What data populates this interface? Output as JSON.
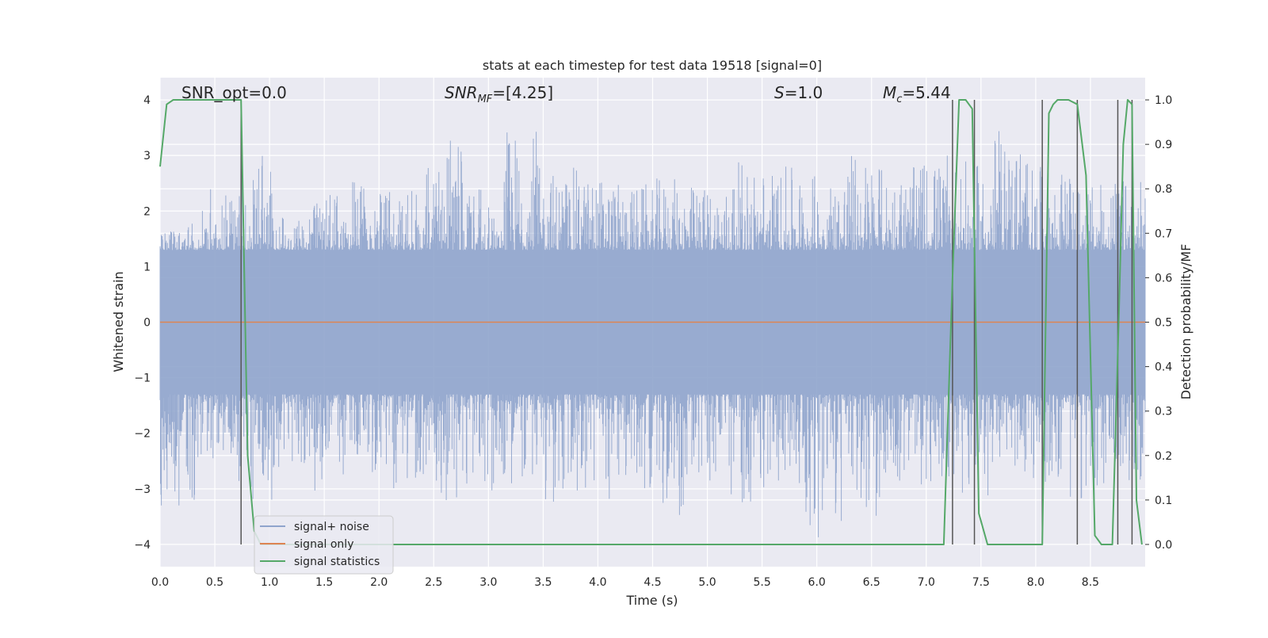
{
  "chart_data": {
    "type": "line",
    "title": "stats at each timestep for test data 19518 [signal=0]",
    "xlabel": "Time (s)",
    "ylabel": "Whitened strain",
    "y2label": "Detection probability/MF",
    "xlim": [
      0.0,
      9.0
    ],
    "ylim": [
      -4.4,
      4.4
    ],
    "y2lim": [
      -0.05,
      1.05
    ],
    "xticks": [
      "0.0",
      "0.5",
      "1.0",
      "1.5",
      "2.0",
      "2.5",
      "3.0",
      "3.5",
      "4.0",
      "4.5",
      "5.0",
      "5.5",
      "6.0",
      "6.5",
      "7.0",
      "7.5",
      "8.0",
      "8.5"
    ],
    "yticks": [
      "4",
      "3",
      "2",
      "1",
      "0",
      "−1",
      "−2",
      "−3",
      "−4"
    ],
    "y2ticks": [
      "1.0",
      "0.9",
      "0.8",
      "0.7",
      "0.6",
      "0.5",
      "0.4",
      "0.3",
      "0.2",
      "0.1",
      "0.0"
    ],
    "grid": true,
    "legend_position": "lower-left",
    "annotations": {
      "snr_opt": "SNR_opt=0.0",
      "snr_mf_base": "SNR",
      "snr_mf_sub": "MF",
      "snr_mf_value": "=[4.25]",
      "s_label": "S",
      "s_value": "=1.0",
      "mc_base": "M",
      "mc_sub": "c",
      "mc_value": "=5.44"
    },
    "series": [
      {
        "name": "signal+ noise",
        "color": "#8fa4cc",
        "axis": "left",
        "envelope_upper": [
          1.8,
          2.4,
          3.1,
          1.9,
          2.3,
          2.6,
          2.5,
          3.3,
          2.4,
          3.5,
          2.8,
          2.7,
          2.5,
          2.6,
          2.5,
          2.9,
          2.8,
          2.7,
          3.1,
          2.8,
          3.0,
          2.9,
          3.5,
          2.8,
          2.5,
          2.6
        ],
        "envelope_lower": [
          -3.3,
          -2.5,
          -3.2,
          -2.8,
          -3.1,
          -2.7,
          -3.0,
          -3.3,
          -3.2,
          -2.9,
          -3.4,
          -3.2,
          -3.0,
          -3.5,
          -3.0,
          -3.3,
          -2.9,
          -3.9,
          -3.5,
          -3.1,
          -3.0,
          -3.2,
          -2.8,
          -2.9,
          -3.3,
          -3.0
        ]
      },
      {
        "name": "signal only",
        "color": "#dd8452",
        "axis": "left",
        "x": [
          0.0,
          9.0
        ],
        "y": [
          0.0,
          0.0
        ]
      },
      {
        "name": "signal statistics",
        "color": "#55a868",
        "axis": "right",
        "x": [
          0.0,
          0.06,
          0.12,
          0.2,
          0.3,
          0.4,
          0.5,
          0.6,
          0.7,
          0.74,
          0.8,
          0.86,
          0.92,
          1.0,
          2.0,
          3.0,
          4.0,
          5.0,
          6.0,
          6.4,
          6.6,
          6.7,
          7.0,
          7.16,
          7.24,
          7.3,
          7.36,
          7.42,
          7.48,
          7.56,
          7.7,
          7.9,
          8.0,
          8.06,
          8.12,
          8.16,
          8.2,
          8.3,
          8.38,
          8.46,
          8.54,
          8.6,
          8.7,
          8.76,
          8.8,
          8.84,
          8.88,
          8.92,
          8.97
        ],
        "y": [
          0.85,
          0.99,
          1.0,
          1.0,
          1.0,
          1.0,
          1.0,
          1.0,
          1.0,
          1.0,
          0.2,
          0.03,
          0.0,
          0.0,
          0.0,
          0.0,
          0.0,
          0.0,
          0.0,
          0.0,
          0.0,
          0.0,
          0.0,
          0.0,
          0.6,
          1.0,
          1.0,
          0.98,
          0.07,
          0.0,
          0.0,
          0.0,
          0.0,
          0.0,
          0.97,
          0.99,
          1.0,
          1.0,
          0.99,
          0.83,
          0.02,
          0.0,
          0.0,
          0.52,
          0.9,
          1.0,
          0.99,
          0.1,
          0.0
        ]
      }
    ],
    "vertical_markers_x": [
      0.74,
      7.24,
      7.44,
      8.06,
      8.38,
      8.75,
      8.88
    ]
  }
}
